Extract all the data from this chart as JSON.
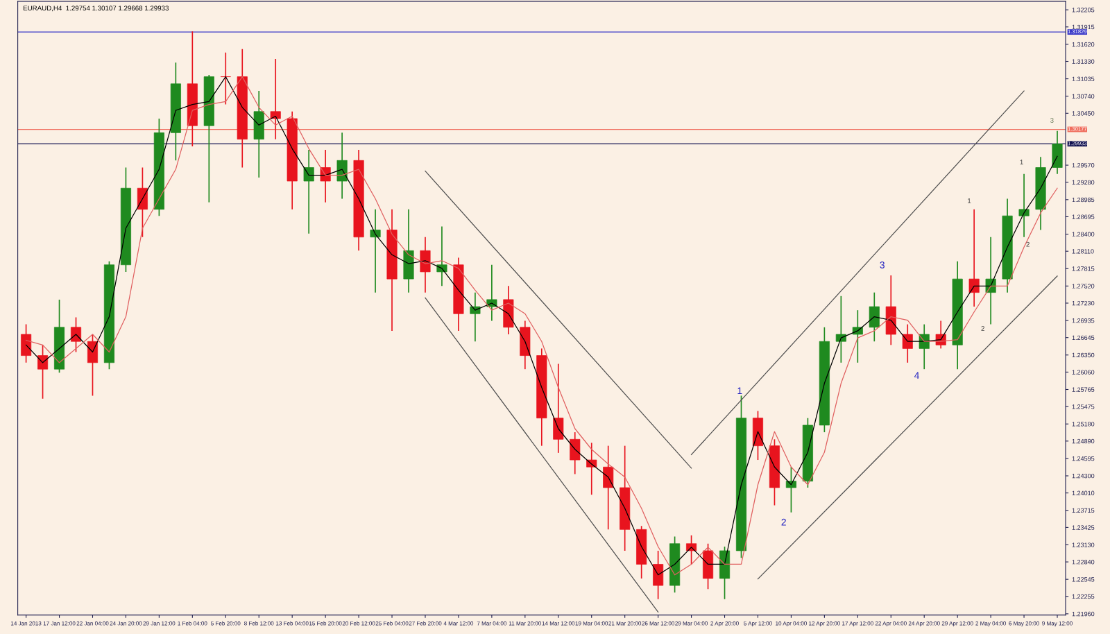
{
  "chart_data": {
    "type": "candlestick",
    "title": "EURAUD,H4  1.29754 1.30107 1.29668 1.29933",
    "categories": [
      "14 Jan 2013",
      null,
      "17 Jan 12:00",
      null,
      "22 Jan 04:00",
      null,
      "24 Jan 20:00",
      null,
      "29 Jan 12:00",
      null,
      "1 Feb 04:00",
      null,
      "5 Feb 20:00",
      null,
      "8 Feb 12:00",
      null,
      "13 Feb 04:00",
      null,
      "15 Feb 20:00",
      null,
      "20 Feb 12:00",
      null,
      "25 Feb 04:00",
      null,
      "27 Feb 20:00",
      null,
      "4 Mar 12:00",
      null,
      "7 Mar 04:00",
      null,
      "11 Mar 20:00",
      null,
      "14 Mar 12:00",
      null,
      "19 Mar 04:00",
      null,
      "21 Mar 20:00",
      null,
      "26 Mar 12:00",
      null,
      "29 Mar 04:00",
      null,
      "2 Apr 20:00",
      null,
      "5 Apr 12:00",
      null,
      "10 Apr 04:00",
      null,
      "12 Apr 20:00",
      null,
      "17 Apr 12:00",
      null,
      "22 Apr 04:00",
      null,
      "24 Apr 20:00",
      null,
      "29 Apr 12:00",
      null,
      "2 May 04:00",
      null,
      "6 May 20:00",
      null,
      "9 May 12:00"
    ],
    "ohlc": [
      [
        1.267,
        1.2687,
        1.2622,
        1.2634
      ],
      [
        1.2634,
        1.2652,
        1.2561,
        1.2611
      ],
      [
        1.2611,
        1.2729,
        1.2605,
        1.2682
      ],
      [
        1.2682,
        1.2699,
        1.264,
        1.2658
      ],
      [
        1.2658,
        1.267,
        1.2566,
        1.2622
      ],
      [
        1.2622,
        1.2794,
        1.2611,
        1.2788
      ],
      [
        1.2788,
        1.2953,
        1.2776,
        1.2918
      ],
      [
        1.2918,
        1.2953,
        1.2835,
        1.2882
      ],
      [
        1.2882,
        1.3036,
        1.2871,
        1.3012
      ],
      [
        1.3012,
        1.3131,
        1.2965,
        1.3095
      ],
      [
        1.3095,
        1.3184,
        1.2989,
        1.3024
      ],
      [
        1.3024,
        1.311,
        1.2894,
        1.3107
      ],
      [
        1.3107,
        1.3148,
        1.306,
        1.3107
      ],
      [
        1.3107,
        1.3154,
        1.2953,
        1.3001
      ],
      [
        1.3001,
        1.3083,
        1.2936,
        1.3048
      ],
      [
        1.3048,
        1.3137,
        1.3001,
        1.3036
      ],
      [
        1.3036,
        1.3048,
        1.2882,
        1.293
      ],
      [
        1.293,
        1.2983,
        1.2841,
        1.2953
      ],
      [
        1.2953,
        1.2983,
        1.2894,
        1.293
      ],
      [
        1.293,
        1.3012,
        1.29,
        1.2965
      ],
      [
        1.2965,
        1.2983,
        1.2812,
        1.2835
      ],
      [
        1.2835,
        1.2882,
        1.2741,
        1.2847
      ],
      [
        1.2847,
        1.2882,
        1.2676,
        1.2764
      ],
      [
        1.2764,
        1.2882,
        1.2741,
        1.2812
      ],
      [
        1.2812,
        1.2835,
        1.2741,
        1.2776
      ],
      [
        1.2776,
        1.2853,
        1.2752,
        1.2788
      ],
      [
        1.2788,
        1.28,
        1.2676,
        1.2705
      ],
      [
        1.2705,
        1.2741,
        1.2658,
        1.2717
      ],
      [
        1.2717,
        1.2788,
        1.2693,
        1.2729
      ],
      [
        1.2729,
        1.2752,
        1.267,
        1.2682
      ],
      [
        1.2682,
        1.2693,
        1.2611,
        1.2634
      ],
      [
        1.2634,
        1.2646,
        1.2481,
        1.2528
      ],
      [
        1.2528,
        1.262,
        1.2469,
        1.2492
      ],
      [
        1.2492,
        1.2504,
        1.2433,
        1.2457
      ],
      [
        1.2457,
        1.2486,
        1.2398,
        1.2445
      ],
      [
        1.2445,
        1.2481,
        1.2339,
        1.241
      ],
      [
        1.241,
        1.2481,
        1.2303,
        1.2339
      ],
      [
        1.2339,
        1.2345,
        1.2256,
        1.228
      ],
      [
        1.228,
        1.2303,
        1.2221,
        1.2244
      ],
      [
        1.2244,
        1.2327,
        1.2232,
        1.2315
      ],
      [
        1.2315,
        1.2329,
        1.228,
        1.2303
      ],
      [
        1.2303,
        1.2315,
        1.2238,
        1.2256
      ],
      [
        1.2256,
        1.231,
        1.2221,
        1.2303
      ],
      [
        1.2303,
        1.2566,
        1.2291,
        1.2528
      ],
      [
        1.2528,
        1.254,
        1.2457,
        1.2481
      ],
      [
        1.2481,
        1.2492,
        1.238,
        1.241
      ],
      [
        1.241,
        1.2445,
        1.2368,
        1.2421
      ],
      [
        1.2421,
        1.2528,
        1.241,
        1.2516
      ],
      [
        1.2516,
        1.2682,
        1.2504,
        1.2658
      ],
      [
        1.2658,
        1.2735,
        1.2622,
        1.267
      ],
      [
        1.267,
        1.2711,
        1.2622,
        1.2682
      ],
      [
        1.2682,
        1.2741,
        1.2658,
        1.2717
      ],
      [
        1.2717,
        1.277,
        1.2652,
        1.267
      ],
      [
        1.267,
        1.2687,
        1.2622,
        1.2646
      ],
      [
        1.2646,
        1.2687,
        1.2611,
        1.267
      ],
      [
        1.267,
        1.2693,
        1.2646,
        1.2652
      ],
      [
        1.2652,
        1.2794,
        1.2611,
        1.2764
      ],
      [
        1.2764,
        1.2882,
        1.2717,
        1.2741
      ],
      [
        1.2741,
        1.2835,
        1.2687,
        1.2764
      ],
      [
        1.2764,
        1.29,
        1.2741,
        1.2871
      ],
      [
        1.2871,
        1.2942,
        1.2835,
        1.2882
      ],
      [
        1.2882,
        1.2971,
        1.2847,
        1.2953
      ],
      [
        1.2953,
        1.3015,
        1.2942,
        1.2993
      ]
    ],
    "colors": [
      "#e8141e",
      "#e8141e",
      "#1f8a1f",
      "#e8141e",
      "#e8141e",
      "#1f8a1f",
      "#1f8a1f",
      "#e8141e",
      "#1f8a1f",
      "#1f8a1f",
      "#e8141e",
      "#1f8a1f",
      "#e8141e",
      "#e8141e",
      "#1f8a1f",
      "#e8141e",
      "#e8141e",
      "#1f8a1f",
      "#e8141e",
      "#1f8a1f",
      "#e8141e",
      "#1f8a1f",
      "#e8141e",
      "#1f8a1f",
      "#e8141e",
      "#1f8a1f",
      "#e8141e",
      "#1f8a1f",
      "#1f8a1f",
      "#e8141e",
      "#e8141e",
      "#e8141e",
      "#e8141e",
      "#e8141e",
      "#e8141e",
      "#e8141e",
      "#e8141e",
      "#e8141e",
      "#e8141e",
      "#1f8a1f",
      "#e8141e",
      "#e8141e",
      "#1f8a1f",
      "#1f8a1f",
      "#e8141e",
      "#e8141e",
      "#1f8a1f",
      "#1f8a1f",
      "#1f8a1f",
      "#1f8a1f",
      "#1f8a1f",
      "#1f8a1f",
      "#e8141e",
      "#e8141e",
      "#1f8a1f",
      "#e8141e",
      "#1f8a1f",
      "#e8141e",
      "#1f8a1f",
      "#1f8a1f",
      "#1f8a1f",
      "#1f8a1f",
      "#1f8a1f"
    ],
    "series": [
      {
        "type": "line",
        "color": "#000000",
        "values": [
          1.2652,
          1.2622,
          1.2646,
          1.267,
          1.264,
          1.27,
          1.285,
          1.29,
          1.295,
          1.305,
          1.306,
          1.3065,
          1.3107,
          1.3055,
          1.3025,
          1.304,
          1.2985,
          1.294,
          1.294,
          1.295,
          1.29,
          1.284,
          1.2805,
          1.279,
          1.2795,
          1.2782,
          1.2745,
          1.2711,
          1.2723,
          1.2705,
          1.2658,
          1.258,
          1.251,
          1.2475,
          1.245,
          1.2428,
          1.2375,
          1.231,
          1.2262,
          1.228,
          1.2309,
          1.228,
          1.228,
          1.2415,
          1.2505,
          1.2445,
          1.2415,
          1.247,
          1.2587,
          1.2664,
          1.2676,
          1.27,
          1.2694,
          1.2658,
          1.2658,
          1.2661,
          1.2708,
          1.2752,
          1.2752,
          1.2818,
          1.2876,
          1.2918,
          1.2972
        ]
      },
      {
        "type": "line",
        "color": "#e06060",
        "values": [
          1.266,
          1.2652,
          1.2622,
          1.2646,
          1.267,
          1.264,
          1.27,
          1.285,
          1.29,
          1.295,
          1.305,
          1.306,
          1.3065,
          1.3107,
          1.3055,
          1.3025,
          1.304,
          1.2985,
          1.294,
          1.294,
          1.295,
          1.29,
          1.284,
          1.2805,
          1.279,
          1.2795,
          1.2782,
          1.2745,
          1.2711,
          1.2723,
          1.2705,
          1.2658,
          1.258,
          1.251,
          1.2475,
          1.245,
          1.2428,
          1.2375,
          1.231,
          1.2262,
          1.228,
          1.2309,
          1.228,
          1.228,
          1.2415,
          1.2505,
          1.2445,
          1.2415,
          1.247,
          1.2587,
          1.2664,
          1.2676,
          1.27,
          1.2694,
          1.2658,
          1.2658,
          1.2661,
          1.2708,
          1.2752,
          1.2752,
          1.2818,
          1.2876,
          1.2918
        ]
      },
      {
        "type": "line",
        "color": "#505050",
        "values": [
          null,
          null,
          null,
          null,
          null,
          null,
          null,
          null,
          null,
          null,
          null,
          null,
          null,
          null,
          null,
          null,
          null,
          null,
          null,
          null,
          null,
          null,
          null,
          null,
          1.2947,
          null,
          null,
          null,
          null,
          null,
          null,
          null,
          null,
          null,
          null,
          null,
          null,
          null,
          null,
          null,
          1.2443,
          null,
          null,
          null,
          null,
          null,
          null,
          null,
          null,
          null,
          null,
          null,
          null,
          null,
          null,
          null,
          null,
          null,
          null,
          null,
          null,
          null,
          null
        ]
      },
      {
        "type": "line",
        "color": "#505050",
        "values": [
          null,
          null,
          null,
          null,
          null,
          null,
          null,
          null,
          null,
          null,
          null,
          null,
          null,
          null,
          null,
          null,
          null,
          null,
          null,
          null,
          null,
          null,
          null,
          null,
          1.2732,
          null,
          null,
          null,
          null,
          null,
          null,
          null,
          null,
          null,
          null,
          null,
          null,
          null,
          1.2199,
          null,
          null,
          null,
          null,
          null,
          null,
          null,
          null,
          null,
          null,
          null,
          null,
          null,
          null,
          null,
          null,
          null,
          null,
          null,
          null,
          null,
          null,
          null,
          null
        ]
      },
      {
        "type": "line",
        "color": "#505050",
        "values": [
          null,
          null,
          null,
          null,
          null,
          null,
          null,
          null,
          null,
          null,
          null,
          null,
          null,
          null,
          null,
          null,
          null,
          null,
          null,
          null,
          null,
          null,
          null,
          null,
          null,
          null,
          null,
          null,
          null,
          null,
          null,
          null,
          null,
          null,
          null,
          null,
          null,
          null,
          null,
          null,
          1.2466,
          null,
          null,
          null,
          null,
          null,
          null,
          null,
          null,
          null,
          null,
          null,
          null,
          null,
          null,
          null,
          null,
          null,
          null,
          null,
          1.3083,
          null,
          null
        ]
      },
      {
        "type": "line",
        "color": "#505050",
        "values": [
          null,
          null,
          null,
          null,
          null,
          null,
          null,
          null,
          null,
          null,
          null,
          null,
          null,
          null,
          null,
          null,
          null,
          null,
          null,
          null,
          null,
          null,
          null,
          null,
          null,
          null,
          null,
          null,
          null,
          null,
          null,
          null,
          null,
          null,
          null,
          null,
          null,
          null,
          null,
          null,
          null,
          null,
          null,
          null,
          1.2255,
          null,
          null,
          null,
          null,
          null,
          null,
          null,
          null,
          null,
          null,
          null,
          null,
          null,
          null,
          null,
          null,
          null,
          1.2769
        ]
      }
    ],
    "ylim": [
      1.2194,
      1.3235
    ],
    "yticks": [
      {
        "value": 1.32205,
        "label": "1.32205"
      },
      {
        "value": 1.31915,
        "label": "1.31915"
      },
      {
        "value": 1.3162,
        "label": "1.31620"
      },
      {
        "value": 1.3133,
        "label": "1.31330"
      },
      {
        "value": 1.31035,
        "label": "1.31035"
      },
      {
        "value": 1.3074,
        "label": "1.30740"
      },
      {
        "value": 1.3045,
        "label": "1.30450"
      },
      {
        "value": 1.2957,
        "label": "1.29570"
      },
      {
        "value": 1.2928,
        "label": "1.29280"
      },
      {
        "value": 1.28985,
        "label": "1.28985"
      },
      {
        "value": 1.28695,
        "label": "1.28695"
      },
      {
        "value": 1.284,
        "label": "1.28400"
      },
      {
        "value": 1.2811,
        "label": "1.28110"
      },
      {
        "value": 1.27815,
        "label": "1.27815"
      },
      {
        "value": 1.2752,
        "label": "1.27520"
      },
      {
        "value": 1.2723,
        "label": "1.27230"
      },
      {
        "value": 1.26935,
        "label": "1.26935"
      },
      {
        "value": 1.26645,
        "label": "1.26645"
      },
      {
        "value": 1.2635,
        "label": "1.26350"
      },
      {
        "value": 1.2606,
        "label": "1.26060"
      },
      {
        "value": 1.25765,
        "label": "1.25765"
      },
      {
        "value": 1.25475,
        "label": "1.25475"
      },
      {
        "value": 1.2518,
        "label": "1.25180"
      },
      {
        "value": 1.2489,
        "label": "1.24890"
      },
      {
        "value": 1.24595,
        "label": "1.24595"
      },
      {
        "value": 1.243,
        "label": "1.24300"
      },
      {
        "value": 1.2401,
        "label": "1.24010"
      },
      {
        "value": 1.23715,
        "label": "1.23715"
      },
      {
        "value": 1.23425,
        "label": "1.23425"
      },
      {
        "value": 1.2313,
        "label": "1.23130"
      },
      {
        "value": 1.2284,
        "label": "1.22840"
      },
      {
        "value": 1.22545,
        "label": "1.22545"
      },
      {
        "value": 1.22255,
        "label": "1.22255"
      },
      {
        "value": 1.2196,
        "label": "1.21960"
      }
    ],
    "ref_lines": [
      {
        "axis": "y",
        "value": 1.31829,
        "label": "1.31829",
        "color": "#3838c8"
      },
      {
        "axis": "y",
        "value": 1.30177,
        "label": "1.30177",
        "color": "#f07060"
      },
      {
        "axis": "y",
        "value": 1.29933,
        "label": "1.29933",
        "color": "#101050"
      }
    ],
    "annotations": [
      "1",
      "2",
      "3",
      "4",
      "1",
      "2",
      "1",
      "2",
      "3"
    ]
  }
}
